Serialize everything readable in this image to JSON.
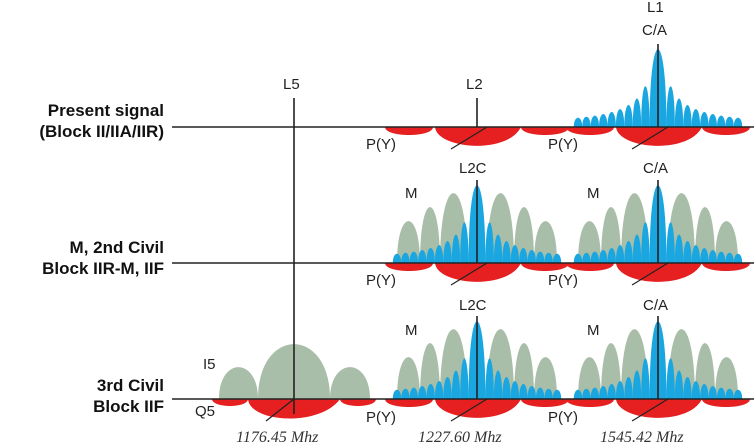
{
  "rows": [
    {
      "label_line1": "Present signal",
      "label_line2": "(Block II/IIA/IIR)"
    },
    {
      "label_line1": "M, 2nd Civil",
      "label_line2": "Block IIR-M, IIF"
    },
    {
      "label_line1": "3rd Civil",
      "label_line2": "Block IIF"
    }
  ],
  "bands": {
    "l5": "L5",
    "l2": "L2",
    "l1": "L1"
  },
  "signals": {
    "ca": "C/A",
    "l2c": "L2C",
    "m": "M",
    "py": "P(Y)",
    "i5": "I5",
    "q5": "Q5"
  },
  "frequencies": {
    "l5": "1176.45 Mhz",
    "l2": "1227.60 Mhz",
    "l1": "1545.42 Mhz"
  },
  "colors": {
    "ca_lobes": "#1aa6e0",
    "py_lobes": "#e62020",
    "m_lobes": "#a9bea8",
    "axis": "#222222"
  }
}
